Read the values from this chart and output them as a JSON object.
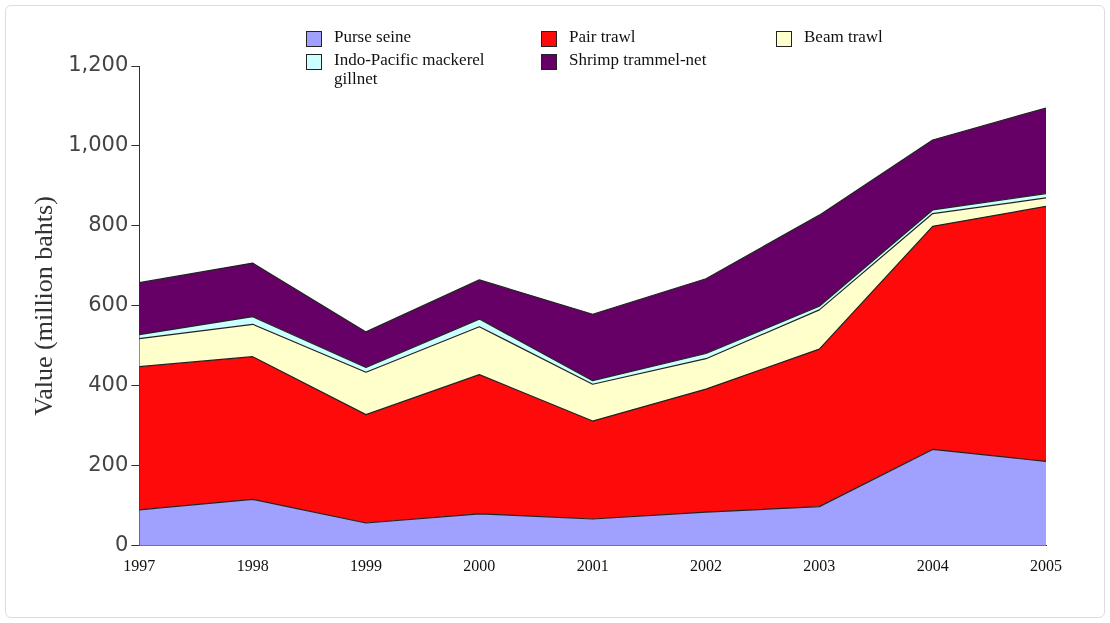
{
  "chart_data": {
    "type": "area",
    "stacked": true,
    "ylabel": "Value (million bahts)",
    "categories": [
      "1997",
      "1998",
      "1999",
      "2000",
      "2001",
      "2002",
      "2003",
      "2004",
      "2005"
    ],
    "series": [
      {
        "name": "Purse seine",
        "color": "#a0a0ff",
        "values": [
          90,
          116,
          57,
          80,
          67,
          84,
          98,
          241,
          211
        ]
      },
      {
        "name": "Pair trawl",
        "color": "#ff0a0a",
        "values": [
          358,
          357,
          271,
          348,
          245,
          308,
          394,
          558,
          638
        ]
      },
      {
        "name": "Beam trawl",
        "color": "#ffffcc",
        "values": [
          70,
          81,
          106,
          120,
          92,
          76,
          98,
          32,
          21
        ]
      },
      {
        "name": "Indo-Pacific mackerel gillnet",
        "color": "#ccffff",
        "values": [
          10,
          19,
          12,
          19,
          9,
          13,
          9,
          9,
          11
        ]
      },
      {
        "name": "Shrimp trammel-net",
        "color": "#660066",
        "values": [
          130,
          134,
          89,
          98,
          166,
          187,
          228,
          175,
          214
        ]
      }
    ],
    "ylim": [
      0,
      1200
    ],
    "yticks": [
      {
        "value": 0,
        "label": "0"
      },
      {
        "value": 200,
        "label": "200"
      },
      {
        "value": 400,
        "label": "400"
      },
      {
        "value": 600,
        "label": "600"
      },
      {
        "value": 800,
        "label": "800"
      },
      {
        "value": 1000,
        "label": "1,000"
      },
      {
        "value": 1200,
        "label": "1,200"
      }
    ],
    "grid": false,
    "legend": "top"
  }
}
